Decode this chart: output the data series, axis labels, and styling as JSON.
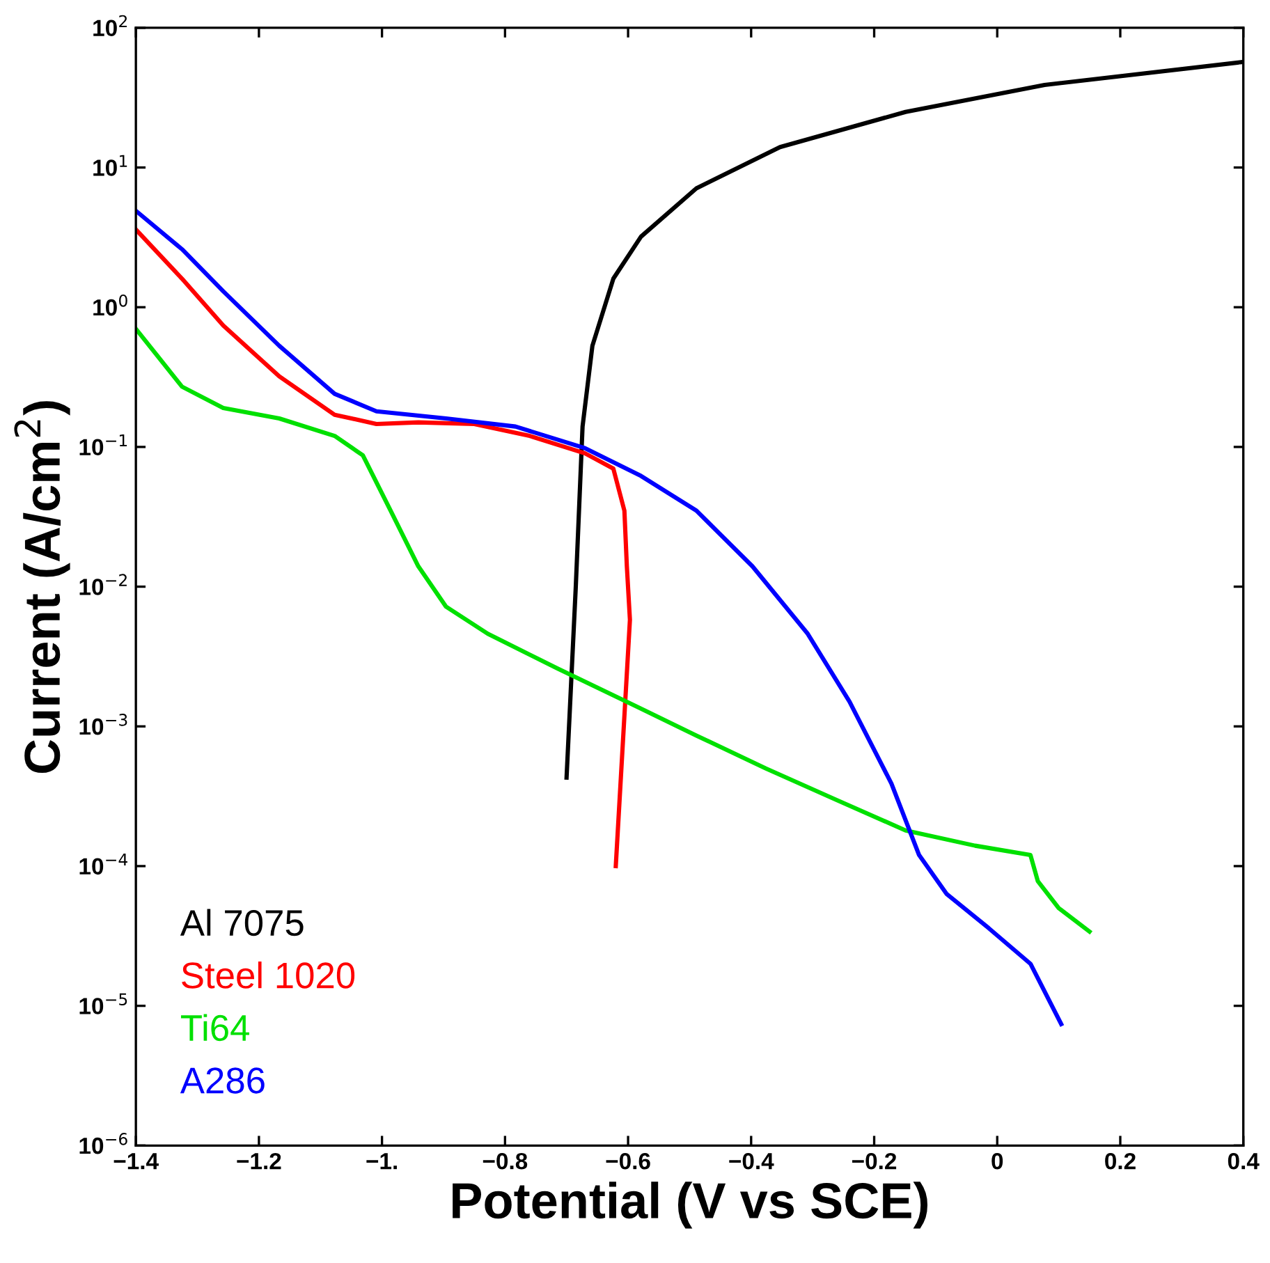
{
  "chart_data": {
    "type": "line",
    "xlabel": "Potential (V vs SCE)",
    "ylabel": "Current (A/cm$^{2}$)",
    "log": "y",
    "legend": "bottom left",
    "marker": "none",
    "line_style": "solid",
    "grid": false,
    "xlim": [
      -1.4,
      0.4
    ],
    "ylim": [
      1e-06,
      100
    ],
    "xticks": [
      {
        "value": -1.4,
        "label": "−1.4"
      },
      {
        "value": -1.2,
        "label": "−1.2"
      },
      {
        "value": -1.0,
        "label": "−1."
      },
      {
        "value": -0.8,
        "label": "−0.8"
      },
      {
        "value": -0.6,
        "label": "−0.6"
      },
      {
        "value": -0.4,
        "label": "−0.4"
      },
      {
        "value": -0.2,
        "label": "−0.2"
      },
      0,
      0.2,
      0.4
    ],
    "yticks": [
      {
        "value": 1e-06,
        "label": "10$^{−6}$"
      },
      {
        "value": 1e-05,
        "label": "10$^{−5}$"
      },
      {
        "value": 0.0001,
        "label": "10$^{−4}$"
      },
      {
        "value": 0.001,
        "label": "10$^{−3}$"
      },
      {
        "value": 0.01,
        "label": "10$^{−2}$"
      },
      {
        "value": 0.1,
        "label": "10$^{−1}$"
      },
      {
        "value": 1,
        "label": "10$^{0}$"
      },
      {
        "value": 10,
        "label": "10$^{1}$"
      },
      {
        "value": 100,
        "label": "10$^{2}$"
      }
    ],
    "series": [
      {
        "name": "Al 7075",
        "color": "#000000",
        "x": [
          -0.7,
          -0.685,
          -0.674,
          -0.658,
          -0.624,
          -0.579,
          -0.489,
          -0.353,
          -0.149,
          0.077,
          0.4
        ],
        "values": [
          0.00043,
          0.01,
          0.14,
          0.53,
          1.6,
          3.2,
          7.1,
          14,
          25,
          39,
          57
        ]
      },
      {
        "name": "Steel 1020",
        "color": "#ff0000",
        "x": [
          -1.4,
          -1.325,
          -1.258,
          -1.167,
          -1.077,
          -1.009,
          -0.941,
          -0.85,
          -0.76,
          -0.67,
          -0.624,
          -0.606,
          -0.602,
          -0.597,
          -0.62
        ],
        "values": [
          3.6,
          1.6,
          0.74,
          0.32,
          0.17,
          0.146,
          0.15,
          0.146,
          0.12,
          0.09,
          0.07,
          0.035,
          0.014,
          0.0058,
          0.0001
        ]
      },
      {
        "name": "Ti64",
        "color": "#00e000",
        "x": [
          -1.4,
          -1.325,
          -1.258,
          -1.167,
          -1.077,
          -1.031,
          -0.986,
          -0.941,
          -0.896,
          -0.828,
          -0.715,
          -0.602,
          -0.489,
          -0.376,
          -0.263,
          -0.149,
          -0.036,
          0.054,
          0.066,
          0.1,
          0.15
        ],
        "values": [
          0.7,
          0.27,
          0.19,
          0.16,
          0.12,
          0.087,
          0.035,
          0.014,
          0.0072,
          0.0046,
          0.0026,
          0.0015,
          0.00086,
          0.0005,
          0.0003,
          0.00018,
          0.00014,
          0.00012,
          7.8e-05,
          5e-05,
          3.4e-05
        ]
      },
      {
        "name": "A286",
        "color": "#0000ff",
        "x": [
          -1.4,
          -1.325,
          -1.258,
          -1.167,
          -1.077,
          -1.009,
          -0.896,
          -0.783,
          -0.67,
          -0.579,
          -0.489,
          -0.398,
          -0.308,
          -0.24,
          -0.172,
          -0.127,
          -0.082,
          -0.014,
          0.054,
          0.104
        ],
        "values": [
          4.9,
          2.6,
          1.3,
          0.53,
          0.24,
          0.18,
          0.16,
          0.14,
          0.098,
          0.062,
          0.035,
          0.014,
          0.0046,
          0.0015,
          0.00039,
          0.00012,
          6.3e-05,
          3.6e-05,
          2e-05,
          7.4e-06
        ]
      }
    ]
  }
}
